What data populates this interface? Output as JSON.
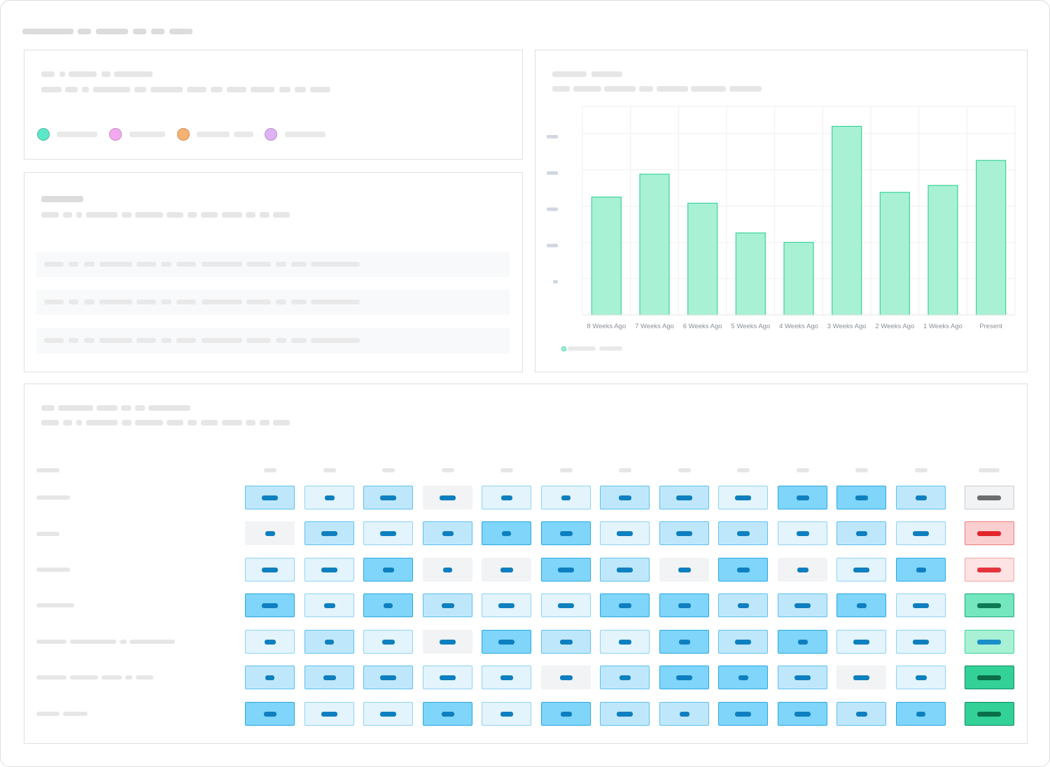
{
  "colors": {
    "bar_fill": "#a9f1d5",
    "bar_stroke": "#3bd39a",
    "grid": "#efefef",
    "heat_levels": {
      "0": {
        "fill": "#f2f3f5",
        "stroke": "#f2f3f5"
      },
      "1": {
        "fill": "#e3f4fd",
        "stroke": "#8fd2f3"
      },
      "2": {
        "fill": "#bfe7fb",
        "stroke": "#5cc0ef"
      },
      "3": {
        "fill": "#7fd5fa",
        "stroke": "#2aa8e0"
      }
    },
    "status_styles": {
      "neutral": {
        "fill": "#f2f3f5",
        "stroke": "#c9cbce",
        "pill": "#6b6d70"
      },
      "red-strong": {
        "fill": "#fbcfcf",
        "stroke": "#ef7c7c",
        "pill": "#e3242b"
      },
      "red-light": {
        "fill": "#fde3e3",
        "stroke": "#f3a3a3",
        "pill": "#e3343b"
      },
      "green-mid": {
        "fill": "#74e7bf",
        "stroke": "#1fa877",
        "pill": "#0d7a55"
      },
      "green-light": {
        "fill": "#a9f1d5",
        "stroke": "#3bd39a",
        "pill": "#1a8fc9"
      },
      "green-strong": {
        "fill": "#33d198",
        "stroke": "#0d8a5e",
        "pill": "#0b6e4a"
      }
    }
  },
  "legend_dot_colors": [
    "#5ee6c8",
    "#f3a9f0",
    "#f7b171",
    "#dfb2f4"
  ],
  "chart_data": {
    "type": "bar",
    "categories": [
      "8 Weeks Ago",
      "7 Weeks Ago",
      "6 Weeks Ago",
      "5 Weeks Ago",
      "4 Weeks Ago",
      "3 Weeks Ago",
      "2 Weeks Ago",
      "1 Weeks Ago",
      "Present"
    ],
    "values": [
      3.25,
      3.88,
      3.08,
      2.26,
      2.0,
      5.2,
      3.38,
      3.57,
      4.26
    ],
    "ylim": [
      0,
      5.75
    ],
    "grid": true,
    "legend_placement": "bottom-left"
  },
  "heatmap": {
    "levels": [
      [
        2,
        1,
        2,
        0,
        1,
        1,
        2,
        2,
        1,
        3,
        3,
        2
      ],
      [
        0,
        2,
        1,
        2,
        3,
        3,
        1,
        2,
        2,
        1,
        2,
        1
      ],
      [
        1,
        1,
        3,
        0,
        0,
        3,
        2,
        0,
        3,
        0,
        1,
        3
      ],
      [
        3,
        1,
        3,
        2,
        1,
        1,
        3,
        3,
        2,
        2,
        3,
        1
      ],
      [
        1,
        2,
        1,
        0,
        3,
        2,
        1,
        3,
        2,
        3,
        1,
        1
      ],
      [
        2,
        2,
        2,
        1,
        1,
        0,
        2,
        3,
        3,
        2,
        0,
        1
      ],
      [
        3,
        1,
        1,
        3,
        1,
        3,
        2,
        2,
        3,
        3,
        2,
        3
      ]
    ],
    "status": [
      "neutral",
      "red-strong",
      "red-light",
      "green-mid",
      "green-light",
      "green-strong",
      "green-strong"
    ]
  }
}
